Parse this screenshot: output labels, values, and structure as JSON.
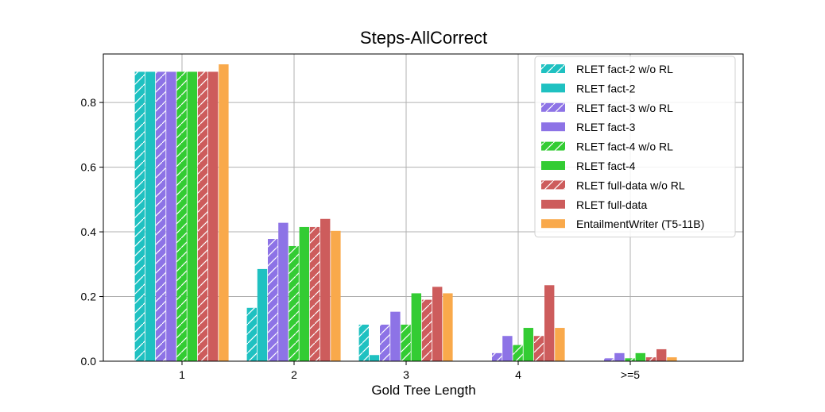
{
  "chart_data": {
    "type": "bar",
    "title": "Steps-AllCorrect",
    "xlabel": "Gold Tree Length",
    "ylabel": "",
    "categories": [
      "1",
      "2",
      "3",
      "4",
      ">=5"
    ],
    "yticks": [
      "0.0",
      "0.2",
      "0.4",
      "0.6",
      "0.8"
    ],
    "ylim": [
      0,
      0.95
    ],
    "grid": true,
    "legend_position": "top-right",
    "series": [
      {
        "name": "RLET fact-2 w/o RL",
        "color": "#1fc1c1",
        "hatch": true,
        "values": [
          0.895,
          0.165,
          0.113,
          0.0,
          0.0
        ]
      },
      {
        "name": "RLET fact-2",
        "color": "#1fc1c1",
        "hatch": false,
        "values": [
          0.895,
          0.285,
          0.019,
          0.0,
          0.0
        ]
      },
      {
        "name": "RLET fact-3 w/o RL",
        "color": "#8d73e6",
        "hatch": true,
        "values": [
          0.895,
          0.378,
          0.113,
          0.025,
          0.009
        ]
      },
      {
        "name": "RLET fact-3",
        "color": "#8d73e6",
        "hatch": false,
        "values": [
          0.895,
          0.428,
          0.153,
          0.078,
          0.025
        ]
      },
      {
        "name": "RLET fact-4 w/o RL",
        "color": "#33cc33",
        "hatch": true,
        "values": [
          0.895,
          0.356,
          0.113,
          0.05,
          0.009
        ]
      },
      {
        "name": "RLET fact-4",
        "color": "#33cc33",
        "hatch": false,
        "values": [
          0.895,
          0.415,
          0.21,
          0.103,
          0.025
        ]
      },
      {
        "name": "RLET full-data w/o RL",
        "color": "#cd5c5c",
        "hatch": true,
        "values": [
          0.895,
          0.415,
          0.19,
          0.078,
          0.012
        ]
      },
      {
        "name": "RLET full-data",
        "color": "#cd5c5c",
        "hatch": false,
        "values": [
          0.895,
          0.44,
          0.23,
          0.235,
          0.037
        ]
      },
      {
        "name": "EntailmentWriter (T5-11B)",
        "color": "#f9a94b",
        "hatch": false,
        "values": [
          0.918,
          0.403,
          0.21,
          0.103,
          0.012
        ]
      }
    ]
  }
}
